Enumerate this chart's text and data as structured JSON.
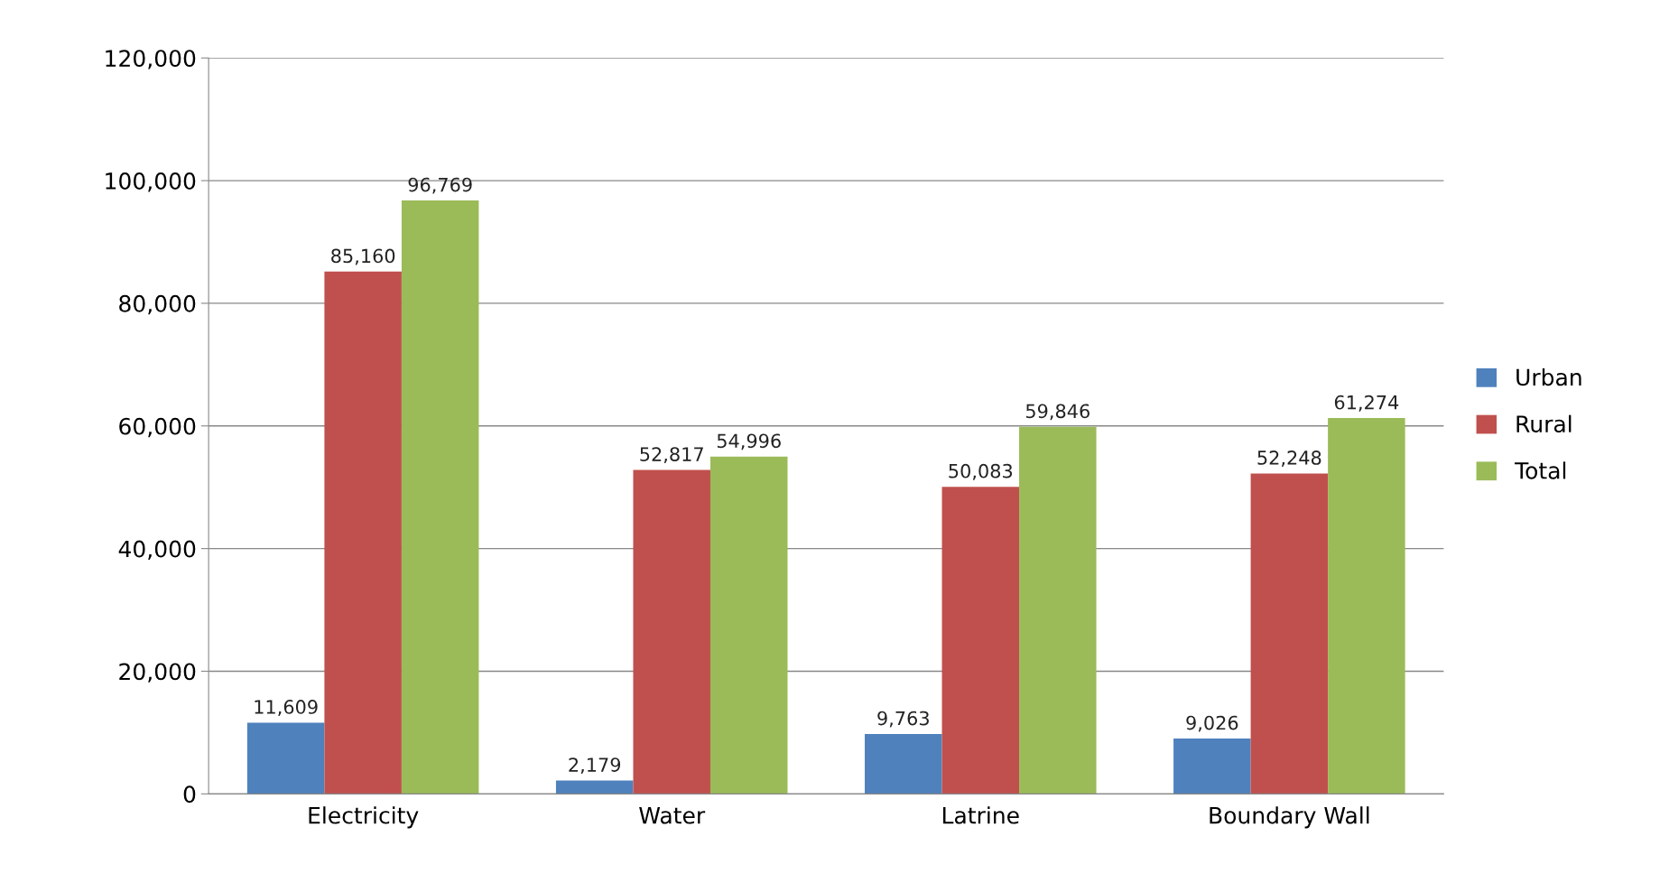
{
  "chart_data": {
    "type": "bar",
    "categories": [
      "Electricity",
      "Water",
      "Latrine",
      "Boundary Wall"
    ],
    "series": [
      {
        "name": "Urban",
        "color": "#4f81bd",
        "values": [
          11609,
          2179,
          9763,
          9026
        ]
      },
      {
        "name": "Rural",
        "color": "#c0504d",
        "values": [
          85160,
          52817,
          50083,
          52248
        ]
      },
      {
        "name": "Total",
        "color": "#9bbb59",
        "values": [
          96769,
          54996,
          59846,
          61274
        ]
      }
    ],
    "ylim": [
      0,
      120000
    ],
    "yticks": [
      {
        "value": 0,
        "label": "0"
      },
      {
        "value": 20000,
        "label": "20,000"
      },
      {
        "value": 40000,
        "label": "40,000"
      },
      {
        "value": 60000,
        "label": "60,000"
      },
      {
        "value": 80000,
        "label": "80,000"
      },
      {
        "value": 100000,
        "label": "100,000"
      },
      {
        "value": 120000,
        "label": "120,000"
      }
    ],
    "value_labels": [
      [
        "11,609",
        "2,179",
        "9,763",
        "9,026"
      ],
      [
        "85,160",
        "52,817",
        "50,083",
        "52,248"
      ],
      [
        "96,769",
        "54,996",
        "59,846",
        "61,274"
      ]
    ],
    "grid": "y",
    "legend": "right"
  }
}
